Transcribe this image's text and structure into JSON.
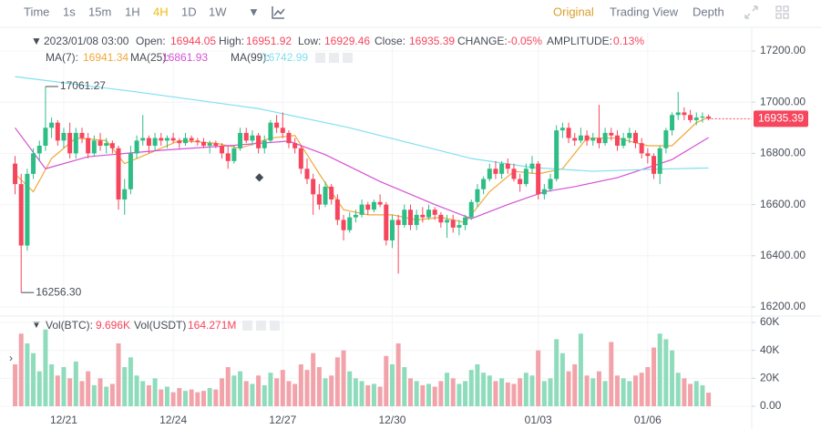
{
  "toolbar": {
    "items": [
      "Time",
      "1s",
      "15m",
      "1H",
      "4H",
      "1D",
      "1W"
    ],
    "active": "4H",
    "views": [
      "Original",
      "Trading View",
      "Depth"
    ],
    "active_view": "Original"
  },
  "chart_data": {
    "type": "candlestick",
    "legend": {
      "date": "2023/01/08 03:00",
      "open_label": "Open:",
      "high_label": "High:",
      "low_label": "Low:",
      "close_label": "Close:",
      "change_label": "CHANGE:",
      "change": "-0.05%",
      "amplitude_label": "AMPLITUDE:",
      "amplitude": "0.13%"
    },
    "up_color": "#2ebd85",
    "down_color": "#f6465d",
    "volume_up_color": "#8fdcbc",
    "volume_down_color": "#f2a3aa",
    "xlim": [
      -2.48,
      121.1
    ],
    "xticks": [
      {
        "value": 8,
        "label": "12/21"
      },
      {
        "value": 26,
        "label": "12/24"
      },
      {
        "value": 44,
        "label": "12/27"
      },
      {
        "value": 62,
        "label": "12/30"
      },
      {
        "value": 86,
        "label": "01/03"
      },
      {
        "value": 104,
        "label": "01/06"
      }
    ],
    "ylim": [
      16164,
      17271
    ],
    "yticks": [
      {
        "value": 17200,
        "label": "17200.00"
      },
      {
        "value": 17000,
        "label": "17000.00"
      },
      {
        "value": 16800,
        "label": "16800.00"
      },
      {
        "value": 16600,
        "label": "16600.00"
      },
      {
        "value": 16400,
        "label": "16400.00"
      },
      {
        "value": 16200,
        "label": "16200.00"
      }
    ],
    "grid": true,
    "max_label": "17061.27",
    "max_index": 5,
    "min_label": "16256.30",
    "min_index": 1,
    "candles": [
      [
        16760,
        16790,
        16640,
        16680
      ],
      [
        16680,
        16720,
        16256.3,
        16440
      ],
      [
        16440,
        16740,
        16420,
        16720
      ],
      [
        16720,
        16820,
        16700,
        16800
      ],
      [
        16800,
        16850,
        16770,
        16830
      ],
      [
        16830,
        17061.27,
        16810,
        16900
      ],
      [
        16900,
        16940,
        16860,
        16920
      ],
      [
        16920,
        16930,
        16830,
        16850
      ],
      [
        16850,
        16900,
        16820,
        16880
      ],
      [
        16880,
        16920,
        16780,
        16800
      ],
      [
        16800,
        16900,
        16780,
        16880
      ],
      [
        16880,
        16900,
        16840,
        16860
      ],
      [
        16860,
        16880,
        16780,
        16800
      ],
      [
        16800,
        16870,
        16790,
        16850
      ],
      [
        16850,
        16880,
        16810,
        16830
      ],
      [
        16830,
        16860,
        16800,
        16840
      ],
      [
        16840,
        16850,
        16800,
        16820
      ],
      [
        16820,
        16830,
        16580,
        16620
      ],
      [
        16620,
        16700,
        16560,
        16660
      ],
      [
        16660,
        16830,
        16640,
        16800
      ],
      [
        16800,
        16870,
        16780,
        16850
      ],
      [
        16850,
        16950,
        16830,
        16860
      ],
      [
        16860,
        16870,
        16800,
        16830
      ],
      [
        16830,
        16880,
        16810,
        16860
      ],
      [
        16860,
        16880,
        16830,
        16850
      ],
      [
        16850,
        16870,
        16820,
        16860
      ],
      [
        16860,
        16880,
        16840,
        16850
      ],
      [
        16850,
        16860,
        16820,
        16840
      ],
      [
        16840,
        16880,
        16830,
        16860
      ],
      [
        16860,
        16870,
        16840,
        16850
      ],
      [
        16850,
        16860,
        16830,
        16845
      ],
      [
        16845,
        16860,
        16820,
        16830
      ],
      [
        16830,
        16850,
        16800,
        16840
      ],
      [
        16840,
        16850,
        16820,
        16830
      ],
      [
        16830,
        16840,
        16780,
        16800
      ],
      [
        16800,
        16830,
        16740,
        16770
      ],
      [
        16770,
        16830,
        16760,
        16820
      ],
      [
        16820,
        16900,
        16810,
        16880
      ],
      [
        16880,
        16900,
        16840,
        16850
      ],
      [
        16850,
        16890,
        16830,
        16870
      ],
      [
        16870,
        16880,
        16800,
        16820
      ],
      [
        16820,
        16870,
        16800,
        16850
      ],
      [
        16850,
        16930,
        16840,
        16920
      ],
      [
        16920,
        16950,
        16880,
        16900
      ],
      [
        16900,
        16960,
        16860,
        16880
      ],
      [
        16880,
        16890,
        16820,
        16840
      ],
      [
        16840,
        16860,
        16800,
        16820
      ],
      [
        16820,
        16830,
        16720,
        16740
      ],
      [
        16740,
        16780,
        16680,
        16700
      ],
      [
        16700,
        16720,
        16560,
        16640
      ],
      [
        16640,
        16680,
        16580,
        16600
      ],
      [
        16600,
        16690,
        16590,
        16670
      ],
      [
        16670,
        16680,
        16600,
        16620
      ],
      [
        16620,
        16640,
        16520,
        16540
      ],
      [
        16540,
        16560,
        16460,
        16500
      ],
      [
        16500,
        16570,
        16490,
        16550
      ],
      [
        16550,
        16580,
        16530,
        16560
      ],
      [
        16560,
        16620,
        16550,
        16600
      ],
      [
        16600,
        16610,
        16560,
        16580
      ],
      [
        16580,
        16620,
        16570,
        16610
      ],
      [
        16610,
        16640,
        16590,
        16600
      ],
      [
        16600,
        16610,
        16440,
        16460
      ],
      [
        16460,
        16560,
        16430,
        16540
      ],
      [
        16540,
        16560,
        16330,
        16520
      ],
      [
        16520,
        16600,
        16510,
        16580
      ],
      [
        16580,
        16600,
        16500,
        16520
      ],
      [
        16520,
        16580,
        16500,
        16560
      ],
      [
        16560,
        16590,
        16530,
        16550
      ],
      [
        16550,
        16600,
        16540,
        16580
      ],
      [
        16580,
        16590,
        16540,
        16560
      ],
      [
        16560,
        16570,
        16510,
        16530
      ],
      [
        16530,
        16560,
        16470,
        16540
      ],
      [
        16540,
        16560,
        16490,
        16510
      ],
      [
        16510,
        16540,
        16480,
        16520
      ],
      [
        16520,
        16560,
        16500,
        16550
      ],
      [
        16550,
        16620,
        16540,
        16610
      ],
      [
        16610,
        16680,
        16590,
        16660
      ],
      [
        16660,
        16710,
        16640,
        16700
      ],
      [
        16700,
        16760,
        16690,
        16740
      ],
      [
        16740,
        16770,
        16700,
        16720
      ],
      [
        16720,
        16770,
        16700,
        16760
      ],
      [
        16760,
        16780,
        16720,
        16740
      ],
      [
        16740,
        16760,
        16690,
        16700
      ],
      [
        16700,
        16720,
        16650,
        16680
      ],
      [
        16680,
        16760,
        16670,
        16740
      ],
      [
        16740,
        16790,
        16720,
        16760
      ],
      [
        16760,
        16770,
        16620,
        16640
      ],
      [
        16640,
        16680,
        16620,
        16660
      ],
      [
        16660,
        16720,
        16650,
        16700
      ],
      [
        16700,
        16910,
        16690,
        16890
      ],
      [
        16890,
        16920,
        16860,
        16900
      ],
      [
        16900,
        16920,
        16840,
        16860
      ],
      [
        16860,
        16880,
        16830,
        16850
      ],
      [
        16850,
        16900,
        16840,
        16870
      ],
      [
        16870,
        16890,
        16830,
        16850
      ],
      [
        16850,
        16880,
        16830,
        16860
      ],
      [
        16860,
        16990,
        16820,
        16840
      ],
      [
        16840,
        16900,
        16830,
        16880
      ],
      [
        16880,
        16900,
        16850,
        16870
      ],
      [
        16870,
        16890,
        16810,
        16830
      ],
      [
        16830,
        16880,
        16820,
        16860
      ],
      [
        16860,
        16900,
        16840,
        16880
      ],
      [
        16880,
        16890,
        16820,
        16840
      ],
      [
        16840,
        16860,
        16780,
        16800
      ],
      [
        16800,
        16820,
        16760,
        16790
      ],
      [
        16790,
        16800,
        16700,
        16720
      ],
      [
        16720,
        16830,
        16680,
        16820
      ],
      [
        16820,
        16900,
        16800,
        16890
      ],
      [
        16890,
        16960,
        16870,
        16950
      ],
      [
        16950,
        17040,
        16930,
        16960
      ],
      [
        16960,
        16980,
        16930,
        16950
      ],
      [
        16950,
        16970,
        16920,
        16930
      ],
      [
        16930,
        16960,
        16910,
        16940
      ],
      [
        16940,
        16960,
        16920,
        16944.05
      ],
      [
        16944.05,
        16951.92,
        16929.46,
        16935.39
      ]
    ],
    "ma_lines": [
      {
        "name": "MA(7):",
        "color": "#f0a83a",
        "x": [
          0,
          3,
          6,
          10,
          15,
          18,
          22,
          27,
          33,
          37,
          42,
          46,
          50,
          54,
          58,
          62,
          66,
          70,
          74,
          78,
          82,
          86,
          90,
          94,
          99,
          104,
          108,
          112,
          114
        ],
        "values": [
          16720,
          16650,
          16780,
          16860,
          16850,
          16760,
          16800,
          16850,
          16840,
          16820,
          16860,
          16870,
          16720,
          16580,
          16560,
          16560,
          16540,
          16550,
          16530,
          16650,
          16730,
          16720,
          16740,
          16860,
          16860,
          16830,
          16830,
          16920,
          16941.34
        ]
      },
      {
        "name": "MA(25):",
        "color": "#d452d4",
        "x": [
          0,
          5,
          12,
          24,
          35,
          45,
          51,
          60,
          69,
          75,
          81,
          87,
          92,
          99,
          108,
          114
        ],
        "values": [
          16900,
          16740,
          16787,
          16812,
          16830,
          16848,
          16795,
          16690,
          16600,
          16545,
          16600,
          16650,
          16670,
          16705,
          16776,
          16861.93
        ]
      },
      {
        "name": "MA(99):",
        "color": "#7fdff0",
        "x": [
          0,
          20,
          40,
          55,
          65,
          75,
          85,
          95,
          105,
          114
        ],
        "values": [
          17100,
          17040,
          16975,
          16900,
          16840,
          16780,
          16745,
          16730,
          16738,
          16742.99
        ]
      }
    ],
    "volume": {
      "label": "Vol(BTC):",
      "value_label": "9.696K",
      "usdt_label": "Vol(USDT)",
      "usdt_value": "164.271M",
      "ylim": [
        0,
        60000
      ],
      "yticks": [
        {
          "value": 60000,
          "label": "60K"
        },
        {
          "value": 40000,
          "label": "40K"
        },
        {
          "value": 20000,
          "label": "20K"
        },
        {
          "value": 0,
          "label": "0.00"
        }
      ],
      "values": [
        30000,
        52000,
        45000,
        38000,
        25000,
        55000,
        30000,
        22000,
        28000,
        20000,
        32000,
        18000,
        25000,
        15000,
        20000,
        14000,
        16000,
        45000,
        28000,
        35000,
        22000,
        18000,
        15000,
        20000,
        12000,
        14000,
        10000,
        13000,
        11000,
        12000,
        10000,
        11000,
        13000,
        12000,
        20000,
        28000,
        22000,
        25000,
        18000,
        16000,
        22000,
        15000,
        24000,
        20000,
        26000,
        18000,
        16000,
        30000,
        26000,
        38000,
        28000,
        20000,
        22000,
        35000,
        40000,
        25000,
        20000,
        18000,
        15000,
        16000,
        14000,
        36000,
        30000,
        45000,
        28000,
        20000,
        18000,
        15000,
        16000,
        14000,
        18000,
        24000,
        20000,
        16000,
        18000,
        26000,
        30000,
        24000,
        22000,
        18000,
        20000,
        17000,
        16000,
        20000,
        24000,
        22000,
        40000,
        18000,
        20000,
        48000,
        38000,
        25000,
        30000,
        52000,
        22000,
        20000,
        25000,
        18000,
        46000,
        22000,
        20000,
        18000,
        22000,
        24000,
        28000,
        42000,
        52000,
        48000,
        40000,
        24000,
        20000,
        16000,
        18000,
        15000,
        9696
      ]
    }
  }
}
